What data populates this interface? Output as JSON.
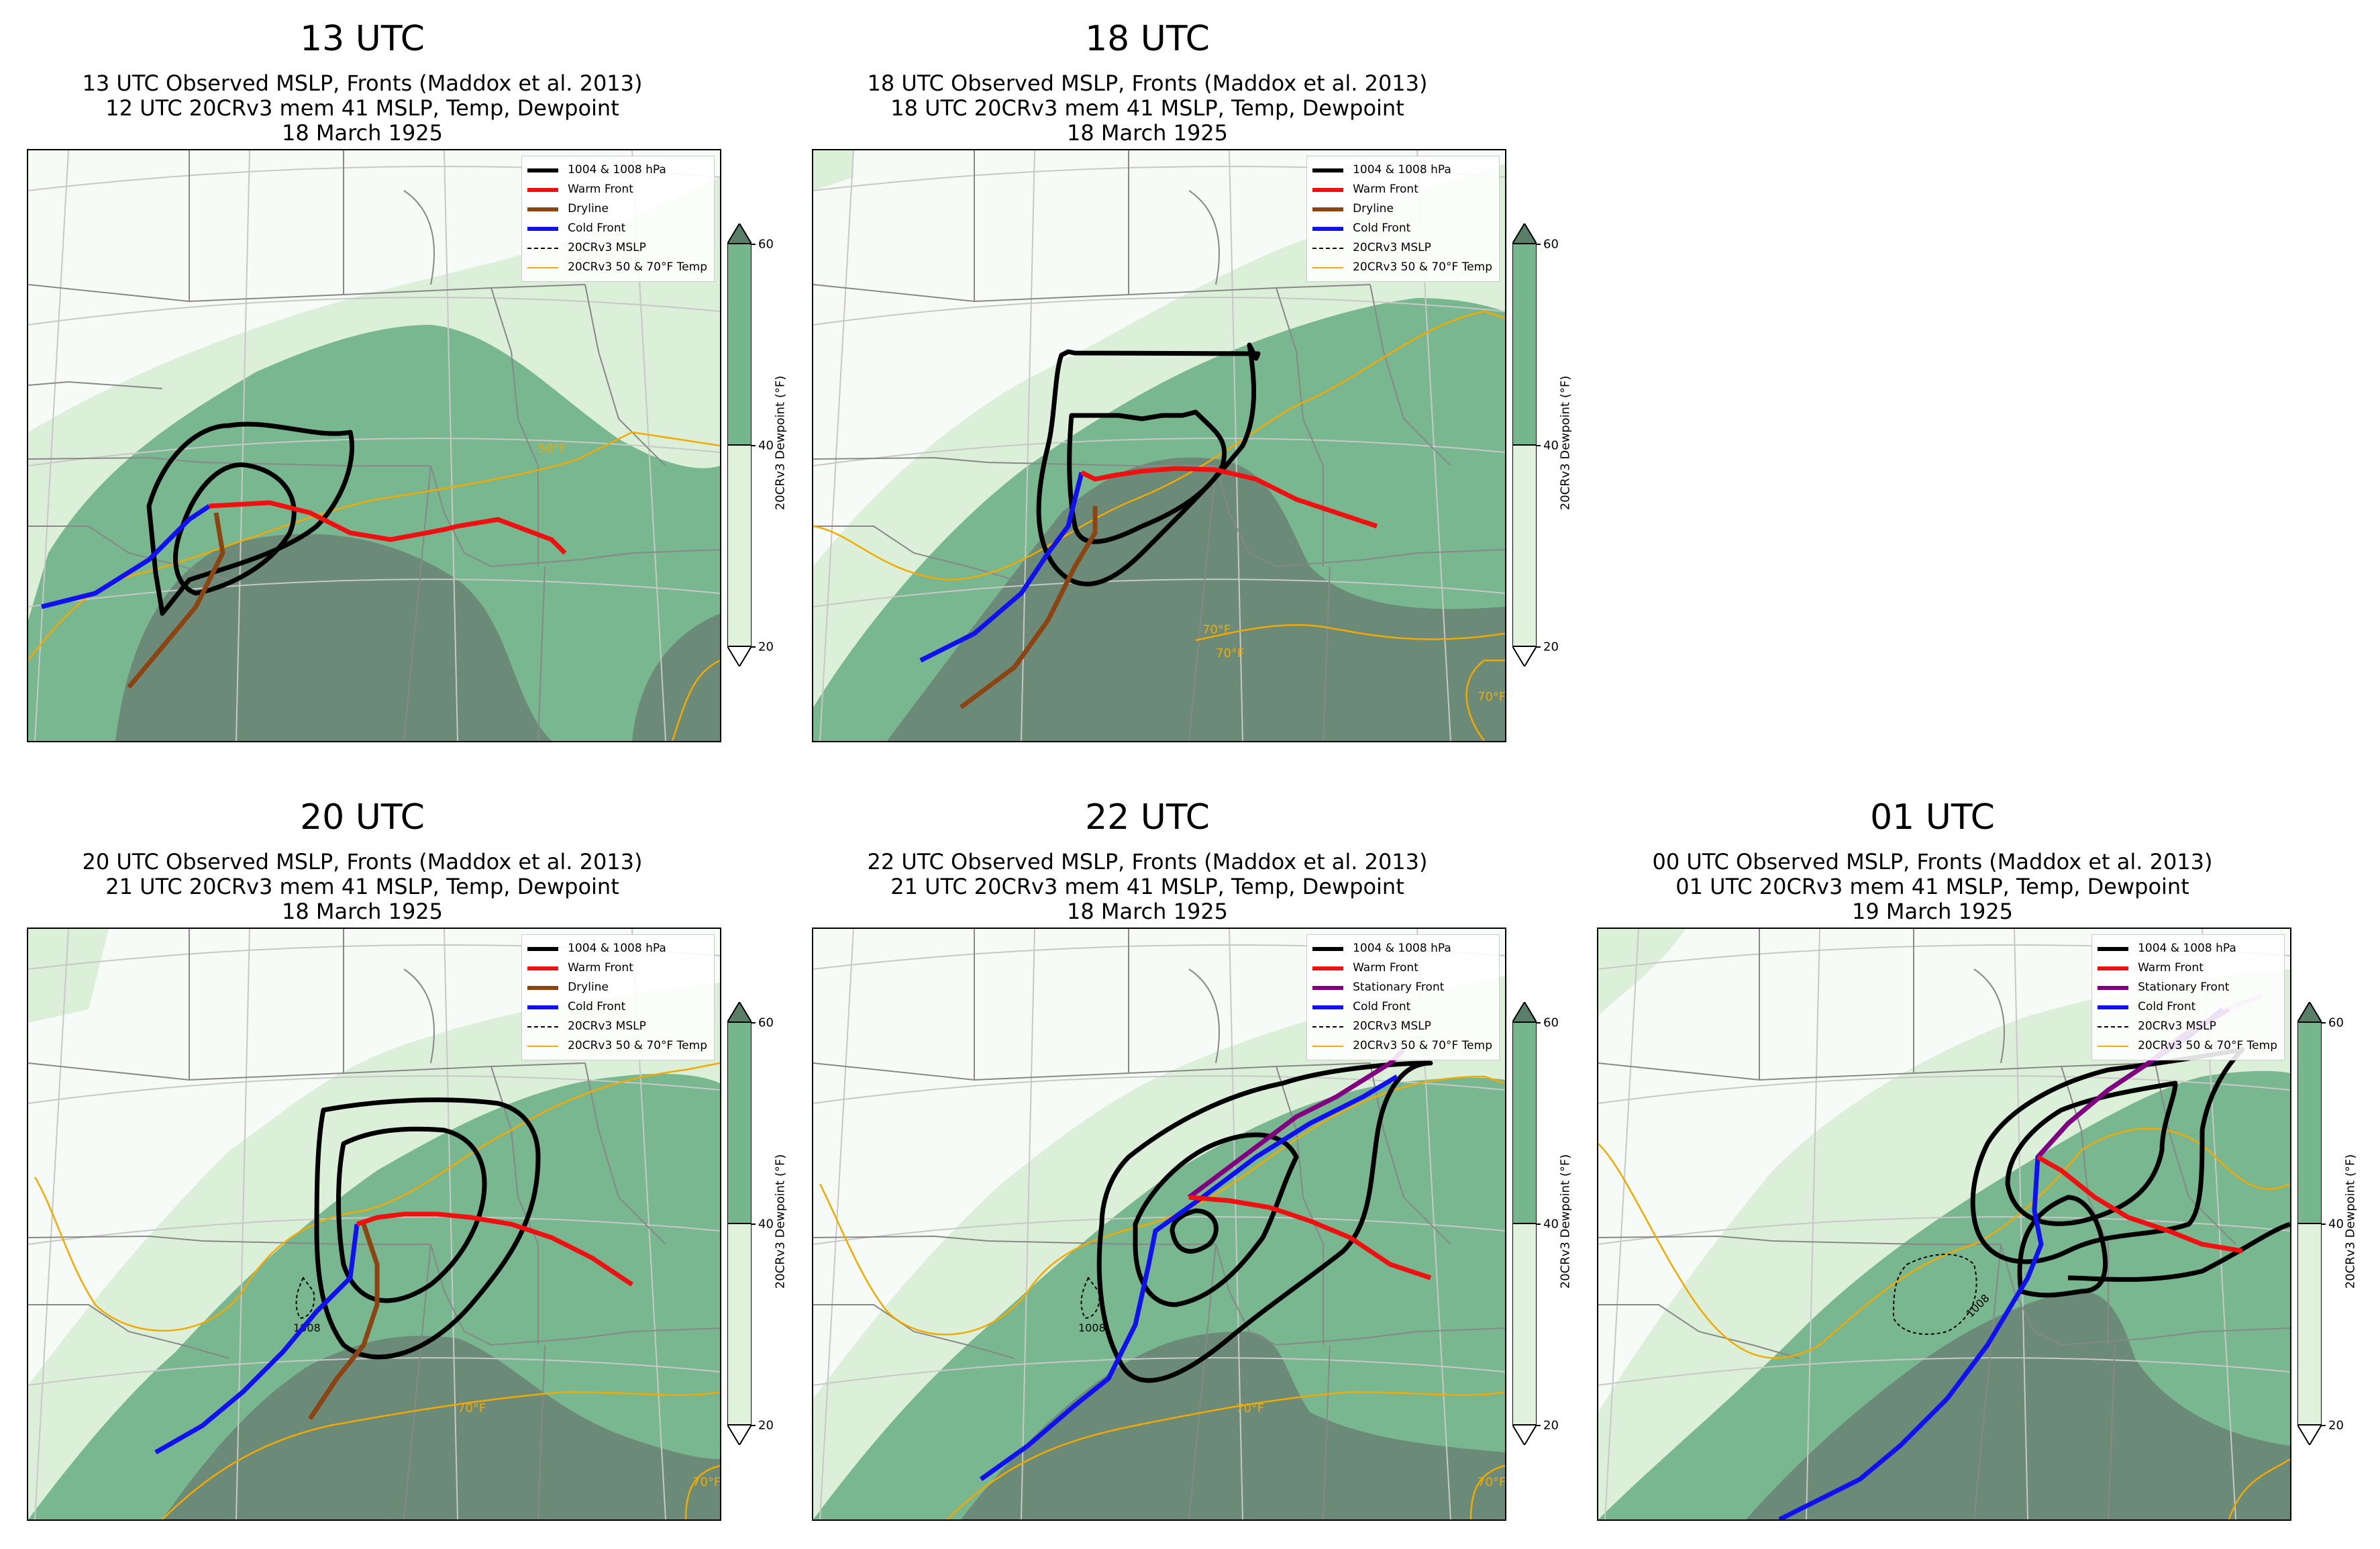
{
  "panels": [
    {
      "title": "13 UTC",
      "subtitle": [
        "13 UTC Observed MSLP, Fronts (Maddox et al. 2013)",
        "12 UTC 20CRv3 mem 41 MSLP, Temp, Dewpoint",
        "18 March 1925"
      ],
      "legend": [
        {
          "label": "1004 & 1008 hPa",
          "color": "#000000",
          "style": "solid-thick"
        },
        {
          "label": "Warm Front",
          "color": "#ee1111",
          "style": "solid-thick"
        },
        {
          "label": "Dryline",
          "color": "#8b4513",
          "style": "solid-thick"
        },
        {
          "label": "Cold Front",
          "color": "#1111ee",
          "style": "solid-thick"
        },
        {
          "label": "20CRv3 MSLP",
          "color": "#000000",
          "style": "dashed"
        },
        {
          "label": "20CRv3 50 & 70°F Temp",
          "color": "#f2a900",
          "style": "solid-thin"
        }
      ],
      "contour_labels": [
        "50°F"
      ]
    },
    {
      "title": "18 UTC",
      "subtitle": [
        "18 UTC Observed MSLP, Fronts (Maddox et al. 2013)",
        "18 UTC 20CRv3 mem 41 MSLP, Temp, Dewpoint",
        "18 March 1925"
      ],
      "legend": [
        {
          "label": "1004 & 1008 hPa",
          "color": "#000000",
          "style": "solid-thick"
        },
        {
          "label": "Warm Front",
          "color": "#ee1111",
          "style": "solid-thick"
        },
        {
          "label": "Dryline",
          "color": "#8b4513",
          "style": "solid-thick"
        },
        {
          "label": "Cold Front",
          "color": "#1111ee",
          "style": "solid-thick"
        },
        {
          "label": "20CRv3 MSLP",
          "color": "#000000",
          "style": "dashed"
        },
        {
          "label": "20CRv3 50 & 70°F Temp",
          "color": "#f2a900",
          "style": "solid-thin"
        }
      ],
      "contour_labels": [
        "70°F",
        "70°F",
        "70°F"
      ]
    },
    {
      "title": "20 UTC",
      "subtitle": [
        "20 UTC Observed MSLP, Fronts (Maddox et al. 2013)",
        "21 UTC 20CRv3 mem 41 MSLP, Temp, Dewpoint",
        "18 March 1925"
      ],
      "legend": [
        {
          "label": "1004 & 1008 hPa",
          "color": "#000000",
          "style": "solid-thick"
        },
        {
          "label": "Warm Front",
          "color": "#ee1111",
          "style": "solid-thick"
        },
        {
          "label": "Dryline",
          "color": "#8b4513",
          "style": "solid-thick"
        },
        {
          "label": "Cold Front",
          "color": "#1111ee",
          "style": "solid-thick"
        },
        {
          "label": "20CRv3 MSLP",
          "color": "#000000",
          "style": "dashed"
        },
        {
          "label": "20CRv3 50 & 70°F Temp",
          "color": "#f2a900",
          "style": "solid-thin"
        }
      ],
      "contour_labels": [
        "70°F",
        "70°F",
        "1008"
      ]
    },
    {
      "title": "22 UTC",
      "subtitle": [
        "22 UTC Observed MSLP, Fronts (Maddox et al. 2013)",
        "21 UTC 20CRv3 mem 41 MSLP, Temp, Dewpoint",
        "18 March 1925"
      ],
      "legend": [
        {
          "label": "1004 & 1008 hPa",
          "color": "#000000",
          "style": "solid-thick"
        },
        {
          "label": "Warm Front",
          "color": "#ee1111",
          "style": "solid-thick"
        },
        {
          "label": "Stationary Front",
          "color": "#800080",
          "style": "solid-thick"
        },
        {
          "label": "Cold Front",
          "color": "#1111ee",
          "style": "solid-thick"
        },
        {
          "label": "20CRv3 MSLP",
          "color": "#000000",
          "style": "dashed"
        },
        {
          "label": "20CRv3 50 & 70°F Temp",
          "color": "#f2a900",
          "style": "solid-thin"
        }
      ],
      "contour_labels": [
        "70°F",
        "70°F",
        "1008"
      ]
    },
    {
      "title": "01 UTC",
      "subtitle": [
        "00 UTC Observed MSLP, Fronts (Maddox et al. 2013)",
        "01 UTC 20CRv3 mem 41 MSLP, Temp, Dewpoint",
        "19 March 1925"
      ],
      "legend": [
        {
          "label": "1004 & 1008 hPa",
          "color": "#000000",
          "style": "solid-thick"
        },
        {
          "label": "Warm Front",
          "color": "#ee1111",
          "style": "solid-thick"
        },
        {
          "label": "Stationary Front",
          "color": "#800080",
          "style": "solid-thick"
        },
        {
          "label": "Cold Front",
          "color": "#1111ee",
          "style": "solid-thick"
        },
        {
          "label": "20CRv3 MSLP",
          "color": "#000000",
          "style": "dashed"
        },
        {
          "label": "20CRv3 50 & 70°F Temp",
          "color": "#f2a900",
          "style": "solid-thin"
        }
      ],
      "contour_labels": [
        "1008"
      ]
    }
  ],
  "colorbar": {
    "label": "20CRv3 Dewpoint (°F)",
    "ticks": [
      "20",
      "40",
      "60"
    ],
    "colors": {
      "low": "#e0f2dc",
      "mid": "#76b68c",
      "high": "#5d8670",
      "max": "#5a7f69",
      "min": "#ffffff"
    }
  },
  "map_colors": {
    "land_dry": "#f7fbf7",
    "dew_light": "#dcefd8",
    "dew_mid": "#78b78f",
    "dew_dark": "#6b8a78",
    "borders": "#888888",
    "grid": "#c8c8c8"
  }
}
